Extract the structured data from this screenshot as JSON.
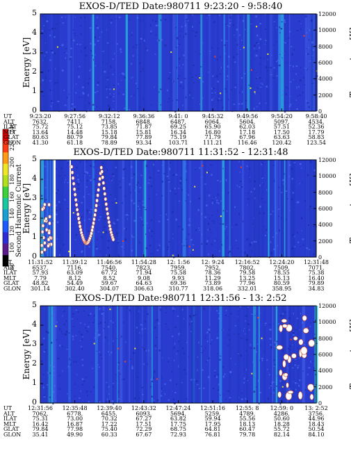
{
  "chart_data": [
    {
      "type": "heatmap",
      "title": "EXOS-D/TED   Date:980711   9:23:20 - 9:58:40",
      "ylabel": "Energy [eV]",
      "y2label": "Temperature [K]",
      "ylim": [
        0,
        5
      ],
      "y2lim": [
        0,
        12000
      ],
      "yticks": [
        "0",
        "1",
        "2",
        "3",
        "4",
        "5"
      ],
      "y2ticks": [
        "0",
        "2000",
        "4000",
        "6000",
        "8000",
        "10000",
        "12000"
      ],
      "table": {
        "UT": [
          "9:23:20",
          "9:27:56",
          "9:32:12",
          "9:36:36",
          "9:41: 0",
          "9:45:32",
          "9:49:56",
          "9:54:20",
          "9:58:40"
        ],
        "ALT": [
          "7632.",
          "7411.",
          "7158.",
          "6848.",
          "6487.",
          "6064.",
          "5604.",
          "5097.",
          "4534."
        ],
        "ILAT": [
          "75.72",
          "75.12",
          "73.85",
          "71.87",
          "69.25",
          "65.90",
          "62.03",
          "57.51",
          "52.36"
        ],
        "MLT": [
          "13.64",
          "14.48",
          "15.18",
          "15.81",
          "16.34",
          "16.80",
          "17.18",
          "17.50",
          "17.79"
        ],
        "GLAT": [
          "80.63",
          "80.79",
          "79.84",
          "77.89",
          "75.19",
          "71.79",
          "67.96",
          "63.63",
          "58.83"
        ],
        "GLON": [
          "41.30",
          "61.18",
          "78.89",
          "93.34",
          "103.71",
          "111.21",
          "116.46",
          "120.42",
          "123.54"
        ]
      }
    },
    {
      "type": "heatmap",
      "title": "EXOS-D/TED   Date:980711   11:31:52 - 12:31:48",
      "ylabel": "Energy [eV]",
      "y2label": "Temperature [K]",
      "ylim": [
        0,
        5
      ],
      "y2lim": [
        0,
        12000
      ],
      "yticks": [
        "0",
        "1",
        "2",
        "3",
        "4",
        "5"
      ],
      "y2ticks": [
        "0",
        "2000",
        "4000",
        "6000",
        "8000",
        "10000",
        "12000"
      ],
      "table": {
        "UT": [
          "11:31:52",
          "11:39:12",
          "11:46:56",
          "11:54:28",
          "12: 1:56",
          "12: 9:24",
          "12:16:52",
          "12:24:20",
          "12:31:48"
        ],
        "ALT": [
          "6537.",
          "7116.",
          "7540.",
          "7823.",
          "7959.",
          "7952.",
          "7802.",
          "7509.",
          "7071."
        ],
        "ILAT": [
          "57.93",
          "63.09",
          "67.72",
          "71.94",
          "75.58",
          "78.36",
          "79.58",
          "78.55",
          "75.38"
        ],
        "MLT": [
          "7.79",
          "8.12",
          "8.52",
          "9.08",
          "9.93",
          "11.29",
          "13.25",
          "15.13",
          "16.40"
        ],
        "GLAT": [
          "48.82",
          "54.49",
          "59.67",
          "64.63",
          "69.36",
          "73.89",
          "77.96",
          "80.59",
          "79.89"
        ],
        "GLON": [
          "301.14",
          "302.40",
          "304.07",
          "306.63",
          "310.77",
          "318.06",
          "332.01",
          "358.95",
          "34.83"
        ]
      }
    },
    {
      "type": "heatmap",
      "title": "EXOS-D/TED   Date:980711   12:31:56 - 13: 2:52",
      "ylabel": "Energy [eV]",
      "y2label": "Temperature [K]",
      "ylim": [
        0,
        5
      ],
      "y2lim": [
        0,
        12000
      ],
      "yticks": [
        "0",
        "1",
        "2",
        "3",
        "4",
        "5"
      ],
      "y2ticks": [
        "0",
        "2000",
        "4000",
        "6000",
        "8000",
        "10000",
        "12000"
      ],
      "table": {
        "UT": [
          "12:31:56",
          "12:35:48",
          "12:39:40",
          "12:43:32",
          "12:47:24",
          "12:51:16",
          "12:55: 8",
          "12:59: 0",
          "13: 2:52"
        ],
        "ALT": [
          "7062.",
          "6778.",
          "6455.",
          "6093.",
          "5694.",
          "5259.",
          "4789.",
          "4286.",
          "3756."
        ],
        "ILAT": [
          "75.31",
          "73.00",
          "70.32",
          "67.27",
          "63.82",
          "59.94",
          "55.56",
          "50.60",
          "44.96"
        ],
        "MLT": [
          "16.42",
          "16.87",
          "17.22",
          "17.51",
          "17.75",
          "17.95",
          "18.13",
          "18.28",
          "18.43"
        ],
        "GLAT": [
          "79.84",
          "77.98",
          "75.40",
          "72.29",
          "68.75",
          "64.81",
          "60.47",
          "55.72",
          "50.54"
        ],
        "GLON": [
          "35.41",
          "49.90",
          "60.33",
          "67.67",
          "72.93",
          "76.81",
          "79.78",
          "82.14",
          "84.10"
        ]
      }
    }
  ],
  "colorbar": {
    "label": "Second Harmonic Current",
    "ticks": [
      "80",
      "100",
      "120",
      "140",
      "160",
      "180",
      "200",
      "220",
      "240"
    ],
    "colors": [
      "#000000",
      "#5a1a8c",
      "#2d2dd4",
      "#1e5aff",
      "#1a9fd4",
      "#19c8a0",
      "#3cd23c",
      "#b4e11e",
      "#f0e628",
      "#ff9b14",
      "#ff3c14",
      "#e60000"
    ]
  }
}
